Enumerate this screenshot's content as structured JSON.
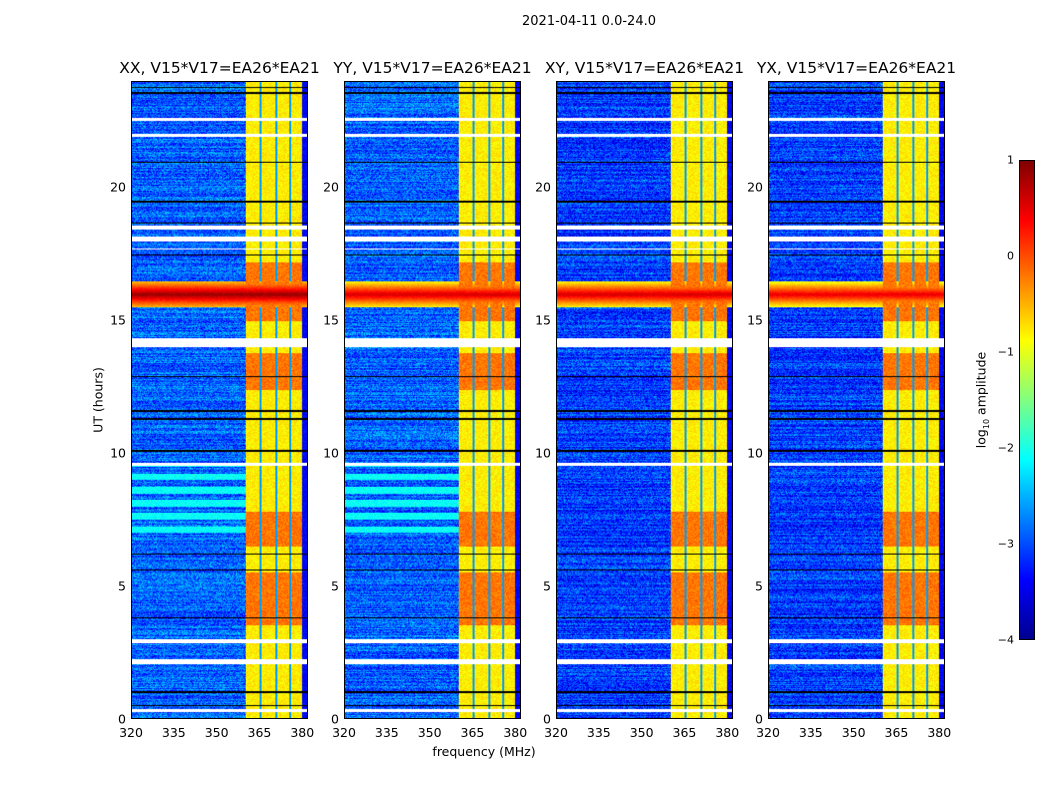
{
  "chart_data": {
    "type": "heatmap",
    "title": "2021-04-11 0.0-24.0",
    "xlabel": "frequency (MHz)",
    "ylabel": "UT (hours)",
    "xlim": [
      320,
      382
    ],
    "ylim": [
      0,
      24
    ],
    "xticks": [
      "320",
      "335",
      "350",
      "365",
      "380"
    ],
    "yticks": [
      "0",
      "5",
      "10",
      "15",
      "20"
    ],
    "colorbar": {
      "label_main": "log",
      "label_sub": "10",
      "label_rest": " amplitude",
      "range": [
        -4,
        1
      ],
      "ticks": [
        "1",
        "0",
        "−1",
        "−2",
        "−3",
        "−4"
      ],
      "colormap": "jet"
    },
    "panels": [
      {
        "title": "XX, V15*V17=EA26*EA21",
        "baseline_log_amp": -2.9,
        "cyan_stripes_hours": [
          [
            7.0,
            9.6
          ]
        ],
        "rfi_log_amp": 0.9
      },
      {
        "title": "YY, V15*V17=EA26*EA21",
        "baseline_log_amp": -2.9,
        "cyan_stripes_hours": [
          [
            7.0,
            9.6
          ]
        ],
        "rfi_log_amp": 0.6
      },
      {
        "title": "XY, V15*V17=EA26*EA21",
        "baseline_log_amp": -3.1,
        "cyan_stripes_hours": [],
        "rfi_log_amp": 0.6
      },
      {
        "title": "YX, V15*V17=EA26*EA21",
        "baseline_log_amp": -3.1,
        "cyan_stripes_hours": [],
        "rfi_log_amp": 0.5
      }
    ],
    "features": {
      "bright_band_mhz": [
        360,
        380
      ],
      "band_log_amp": -0.8,
      "band_gaps_mhz": [
        365.5,
        371,
        376
      ],
      "strong_band_hours": [
        [
          12.4,
          13.8
        ],
        [
          15.0,
          17.2
        ],
        [
          3.5,
          5.5
        ],
        [
          6.5,
          7.8
        ]
      ],
      "rfi_hours": [
        15.5,
        16.5
      ],
      "flagged_hours": [
        [
          22.55,
          22.65
        ],
        [
          21.95,
          22.05
        ],
        [
          18.0,
          18.2
        ],
        [
          18.45,
          18.6
        ],
        [
          17.7,
          17.75
        ],
        [
          14.0,
          14.35
        ],
        [
          9.55,
          9.65
        ],
        [
          2.85,
          3.0
        ],
        [
          2.05,
          2.25
        ],
        [
          0.25,
          0.35
        ]
      ],
      "dropout_hours": [
        23.6,
        23.8,
        21.0,
        19.5,
        18.7,
        17.5,
        12.9,
        11.6,
        11.3,
        10.1,
        6.2,
        5.6,
        3.8,
        1.0,
        0.5
      ]
    }
  }
}
